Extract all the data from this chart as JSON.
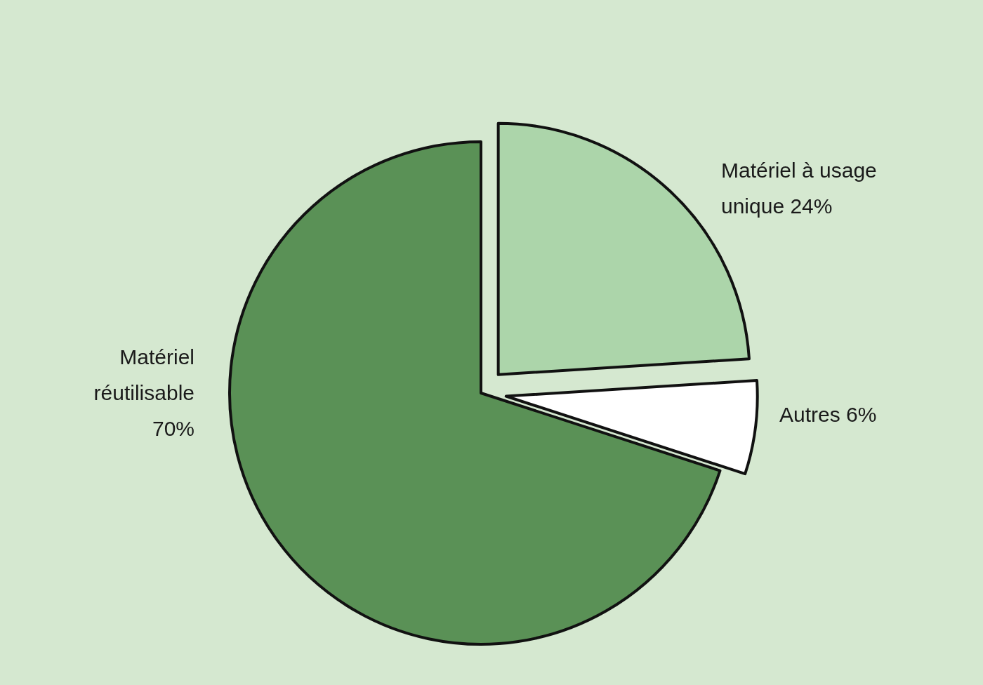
{
  "chart_data": {
    "type": "pie",
    "categories": [
      "Matériel à usage unique",
      "Autres",
      "Matériel réutilisable"
    ],
    "values": [
      24,
      6,
      70
    ],
    "colors": [
      "#acd5aa",
      "#ffffff",
      "#5a9156"
    ],
    "value_labels": [
      "24%",
      "6%",
      "70%"
    ]
  }
}
